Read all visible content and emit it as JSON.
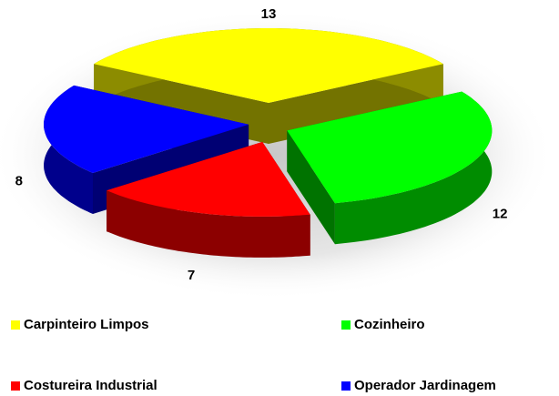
{
  "chart_data": {
    "type": "pie",
    "categories": [
      "Carpinteiro Limpos",
      "Cozinheiro",
      "Costureira Industrial",
      "Operador Jardinagem"
    ],
    "values": [
      13,
      12,
      7,
      8
    ],
    "colors": [
      "#ffff00",
      "#00ff00",
      "#ff0000",
      "#0000ff"
    ],
    "legend": "bottom"
  }
}
